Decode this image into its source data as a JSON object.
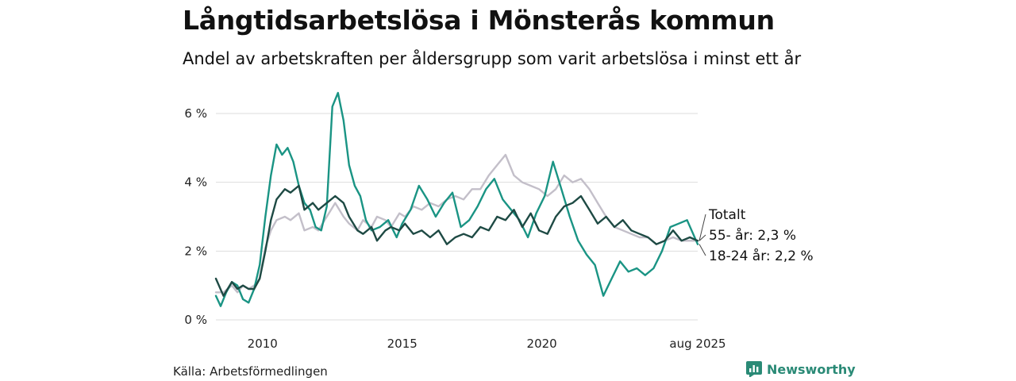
{
  "header": {
    "title": "Långtidsarbetslösa i Mönsterås kommun",
    "subtitle": "Andel av arbetskraften per åldersgrupp som varit arbetslösa i minst ett år"
  },
  "footer": {
    "source": "Källa: Arbetsförmedlingen",
    "brand": "Newsworthy"
  },
  "colors": {
    "totalt": "#1e4a44",
    "age55": "#c3bfc9",
    "age1824": "#1a9484",
    "grid": "#dddddd",
    "brand": "#2a8a76"
  },
  "chart_data": {
    "type": "line",
    "title": "Långtidsarbetslösa i Mönsterås kommun",
    "subtitle": "Andel av arbetskraften per åldersgrupp som varit arbetslösa i minst ett år",
    "xlabel": "",
    "ylabel": "",
    "xlim": [
      2008.33,
      2025.58
    ],
    "ylim": [
      0,
      6.6
    ],
    "y_ticks": [
      0,
      2,
      4,
      6
    ],
    "y_tick_labels": [
      "0 %",
      "2 %",
      "4 %",
      "6 %"
    ],
    "x_ticks": [
      2010,
      2015,
      2020,
      2025.58
    ],
    "x_tick_labels": [
      "2010",
      "2015",
      "2020",
      "aug 2025"
    ],
    "grid": true,
    "legend": "direct labels at line ends, right",
    "series": [
      {
        "name": "Totalt",
        "label": "Totalt",
        "color": "#1e4a44",
        "x": [
          2008.33,
          2008.6,
          2008.9,
          2009.1,
          2009.3,
          2009.5,
          2009.7,
          2009.9,
          2010.1,
          2010.3,
          2010.5,
          2010.8,
          2011.0,
          2011.3,
          2011.5,
          2011.8,
          2012.0,
          2012.3,
          2012.6,
          2012.9,
          2013.1,
          2013.4,
          2013.6,
          2013.9,
          2014.1,
          2014.4,
          2014.6,
          2014.9,
          2015.1,
          2015.4,
          2015.7,
          2016.0,
          2016.3,
          2016.6,
          2016.9,
          2017.2,
          2017.5,
          2017.8,
          2018.1,
          2018.4,
          2018.7,
          2019.0,
          2019.3,
          2019.6,
          2019.9,
          2020.2,
          2020.5,
          2020.8,
          2021.1,
          2021.4,
          2021.7,
          2022.0,
          2022.3,
          2022.6,
          2022.9,
          2023.2,
          2023.5,
          2023.8,
          2024.1,
          2024.4,
          2024.7,
          2025.0,
          2025.3,
          2025.58
        ],
        "values": [
          1.2,
          0.7,
          1.1,
          0.9,
          1.0,
          0.9,
          0.9,
          1.2,
          2.0,
          2.9,
          3.5,
          3.8,
          3.7,
          3.9,
          3.2,
          3.4,
          3.2,
          3.4,
          3.6,
          3.4,
          3.0,
          2.6,
          2.5,
          2.7,
          2.3,
          2.6,
          2.7,
          2.6,
          2.8,
          2.5,
          2.6,
          2.4,
          2.6,
          2.2,
          2.4,
          2.5,
          2.4,
          2.7,
          2.6,
          3.0,
          2.9,
          3.2,
          2.7,
          3.1,
          2.6,
          2.5,
          3.0,
          3.3,
          3.4,
          3.6,
          3.2,
          2.8,
          3.0,
          2.7,
          2.9,
          2.6,
          2.5,
          2.4,
          2.2,
          2.3,
          2.6,
          2.3,
          2.4,
          2.3
        ]
      },
      {
        "name": "55- år",
        "label": "55- år: 2,3 %",
        "color": "#c3bfc9",
        "x": [
          2008.33,
          2008.6,
          2008.9,
          2009.1,
          2009.3,
          2009.5,
          2009.7,
          2009.9,
          2010.1,
          2010.3,
          2010.5,
          2010.8,
          2011.0,
          2011.3,
          2011.5,
          2011.8,
          2012.0,
          2012.3,
          2012.6,
          2012.9,
          2013.1,
          2013.4,
          2013.6,
          2013.9,
          2014.1,
          2014.4,
          2014.6,
          2014.9,
          2015.1,
          2015.4,
          2015.7,
          2016.0,
          2016.3,
          2016.6,
          2016.9,
          2017.2,
          2017.5,
          2017.8,
          2018.1,
          2018.4,
          2018.7,
          2019.0,
          2019.3,
          2019.6,
          2019.9,
          2020.2,
          2020.5,
          2020.8,
          2021.1,
          2021.4,
          2021.7,
          2022.0,
          2022.3,
          2022.6,
          2022.9,
          2023.2,
          2023.5,
          2023.8,
          2024.1,
          2024.4,
          2024.7,
          2025.0,
          2025.3,
          2025.58
        ],
        "values": [
          0.8,
          0.8,
          1.0,
          0.8,
          1.0,
          0.9,
          1.0,
          1.2,
          2.1,
          2.6,
          2.9,
          3.0,
          2.9,
          3.1,
          2.6,
          2.7,
          2.6,
          3.0,
          3.4,
          3.0,
          2.8,
          2.6,
          2.9,
          2.7,
          3.0,
          2.9,
          2.7,
          3.1,
          3.0,
          3.3,
          3.2,
          3.4,
          3.3,
          3.5,
          3.6,
          3.5,
          3.8,
          3.8,
          4.2,
          4.5,
          4.8,
          4.2,
          4.0,
          3.9,
          3.8,
          3.6,
          3.8,
          4.2,
          4.0,
          4.1,
          3.8,
          3.4,
          3.0,
          2.7,
          2.6,
          2.5,
          2.4,
          2.4,
          2.2,
          2.3,
          2.4,
          2.3,
          2.3,
          2.3
        ]
      },
      {
        "name": "18-24 år",
        "label": "18-24 år: 2,2 %",
        "color": "#1a9484",
        "x": [
          2008.33,
          2008.5,
          2008.7,
          2008.9,
          2009.1,
          2009.3,
          2009.5,
          2009.7,
          2009.9,
          2010.1,
          2010.3,
          2010.5,
          2010.7,
          2010.9,
          2011.1,
          2011.3,
          2011.5,
          2011.7,
          2011.9,
          2012.1,
          2012.3,
          2012.5,
          2012.7,
          2012.9,
          2013.1,
          2013.3,
          2013.5,
          2013.7,
          2013.9,
          2014.2,
          2014.5,
          2014.8,
          2015.0,
          2015.3,
          2015.6,
          2015.9,
          2016.2,
          2016.5,
          2016.8,
          2017.1,
          2017.4,
          2017.7,
          2018.0,
          2018.3,
          2018.6,
          2018.9,
          2019.2,
          2019.5,
          2019.8,
          2020.1,
          2020.4,
          2020.7,
          2021.0,
          2021.3,
          2021.6,
          2021.9,
          2022.2,
          2022.5,
          2022.8,
          2023.1,
          2023.4,
          2023.7,
          2024.0,
          2024.3,
          2024.6,
          2024.9,
          2025.2,
          2025.58
        ],
        "values": [
          0.7,
          0.4,
          0.8,
          1.1,
          1.0,
          0.6,
          0.5,
          0.9,
          1.6,
          3.0,
          4.2,
          5.1,
          4.8,
          5.0,
          4.6,
          3.9,
          3.4,
          3.2,
          2.7,
          2.6,
          3.3,
          6.2,
          6.6,
          5.8,
          4.5,
          3.9,
          3.6,
          2.9,
          2.6,
          2.7,
          2.9,
          2.4,
          2.8,
          3.2,
          3.9,
          3.5,
          3.0,
          3.4,
          3.7,
          2.7,
          2.9,
          3.3,
          3.8,
          4.1,
          3.5,
          3.2,
          2.9,
          2.4,
          3.1,
          3.6,
          4.6,
          3.8,
          3.0,
          2.3,
          1.9,
          1.6,
          0.7,
          1.2,
          1.7,
          1.4,
          1.5,
          1.3,
          1.5,
          2.0,
          2.7,
          2.8,
          2.9,
          2.2
        ]
      }
    ]
  }
}
